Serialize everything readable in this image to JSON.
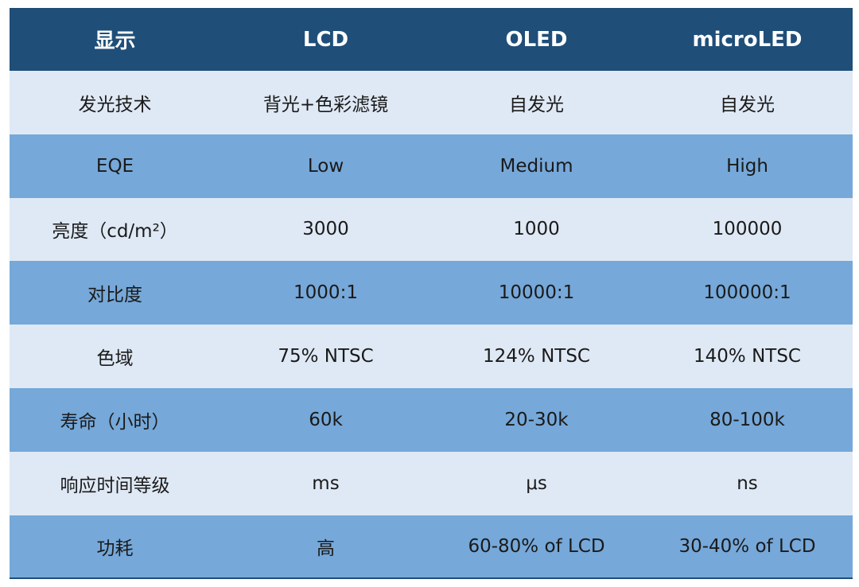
{
  "table": {
    "headers": [
      "显示",
      "LCD",
      "OLED",
      "microLED"
    ],
    "rows": [
      [
        "发光技术",
        "背光+色彩滤镜",
        "自发光",
        "自发光"
      ],
      [
        "EQE",
        "Low",
        "Medium",
        "High"
      ],
      [
        "亮度（cd/m²）",
        "3000",
        "1000",
        "100000"
      ],
      [
        "对比度",
        "1000:1",
        "10000:1",
        "100000:1"
      ],
      [
        "色域",
        "75% NTSC",
        "124% NTSC",
        "140% NTSC"
      ],
      [
        "寿命（小时）",
        "60k",
        "20-30k",
        "80-100k"
      ],
      [
        "响应时间等级",
        "ms",
        "μs",
        "ns"
      ],
      [
        "功耗",
        "高",
        "60-80% of LCD",
        "30-40% of LCD"
      ]
    ]
  },
  "colors": {
    "header_bg": "#1f4e79",
    "row_light": "#dfe9f5",
    "row_dark": "#76a8d9"
  }
}
